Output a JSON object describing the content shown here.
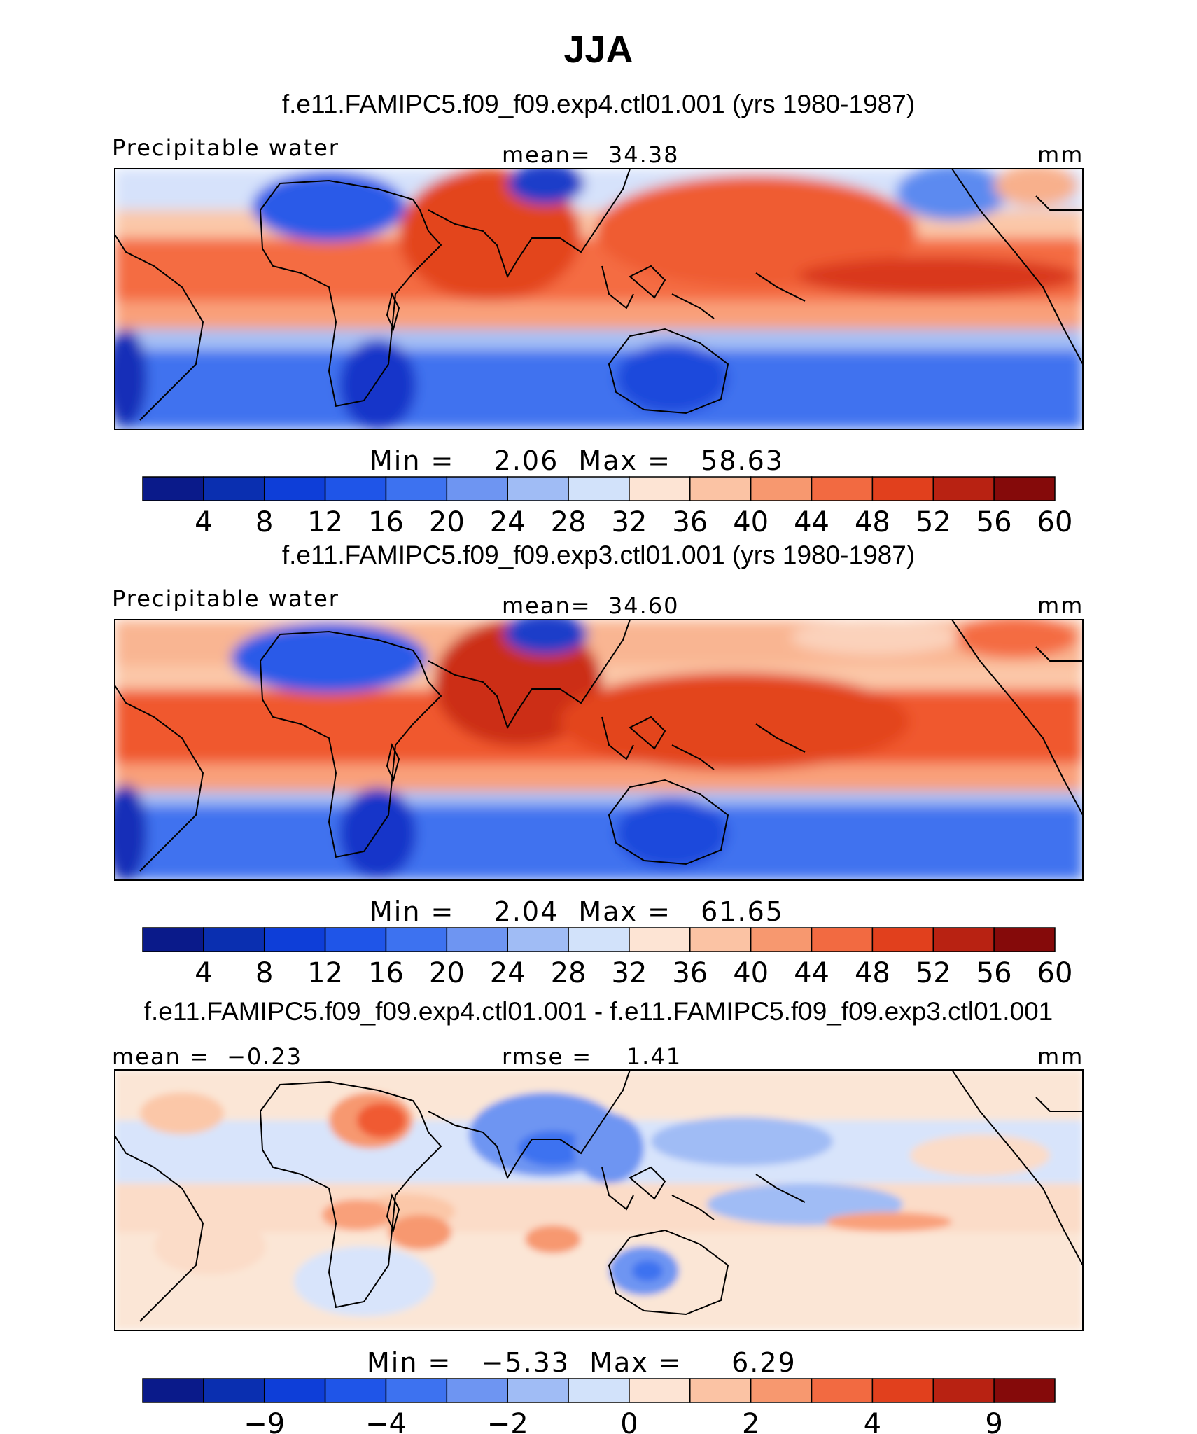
{
  "title": "JJA",
  "palettes": {
    "field": [
      "#0a1a8a",
      "#0a2fb0",
      "#0e3ed8",
      "#1f55e8",
      "#3d72f0",
      "#6e95f2",
      "#a0bcf5",
      "#d2e2fa",
      "#fde4d4",
      "#fbc3a4",
      "#f7986f",
      "#f26a41",
      "#e1401d",
      "#b82212",
      "#850a0a"
    ],
    "diff": [
      "#0a1a8a",
      "#0a2fb0",
      "#0e3ed8",
      "#1f55e8",
      "#3d72f0",
      "#6e95f2",
      "#a0bcf5",
      "#d2e2fa",
      "#fde4d4",
      "#fbc3a4",
      "#f7986f",
      "#f26a41",
      "#e1401d",
      "#b82212",
      "#850a0a"
    ]
  },
  "panels": [
    {
      "id": "exp4",
      "title": "f.e11.FAMIPC5.f09_f09.exp4.ctl01.001 (yrs 1980-1987)",
      "left_label": "Precipitable water",
      "center_label": "mean=  34.38",
      "units": "mm",
      "minmax": "Min =    2.06  Max =   58.63",
      "colorbar_ticks": [
        "4",
        "8",
        "12",
        "16",
        "20",
        "24",
        "28",
        "32",
        "36",
        "40",
        "44",
        "48",
        "52",
        "56",
        "60"
      ]
    },
    {
      "id": "exp3",
      "title": "f.e11.FAMIPC5.f09_f09.exp3.ctl01.001 (yrs 1980-1987)",
      "left_label": "Precipitable water",
      "center_label": "mean=  34.60",
      "units": "mm",
      "minmax": "Min =    2.04  Max =   61.65",
      "colorbar_ticks": [
        "4",
        "8",
        "12",
        "16",
        "20",
        "24",
        "28",
        "32",
        "36",
        "40",
        "44",
        "48",
        "52",
        "56",
        "60"
      ]
    },
    {
      "id": "diff",
      "title": "f.e11.FAMIPC5.f09_f09.exp4.ctl01.001 - f.e11.FAMIPC5.f09_f09.exp3.ctl01.001",
      "left_label": "mean =  −0.23",
      "center_label": "rmse =    1.41",
      "units": "mm",
      "minmax": "Min =   −5.33  Max =     6.29",
      "colorbar_ticks": [
        "−9",
        "−4",
        "−2",
        "0",
        "2",
        "4",
        "9"
      ]
    }
  ]
}
